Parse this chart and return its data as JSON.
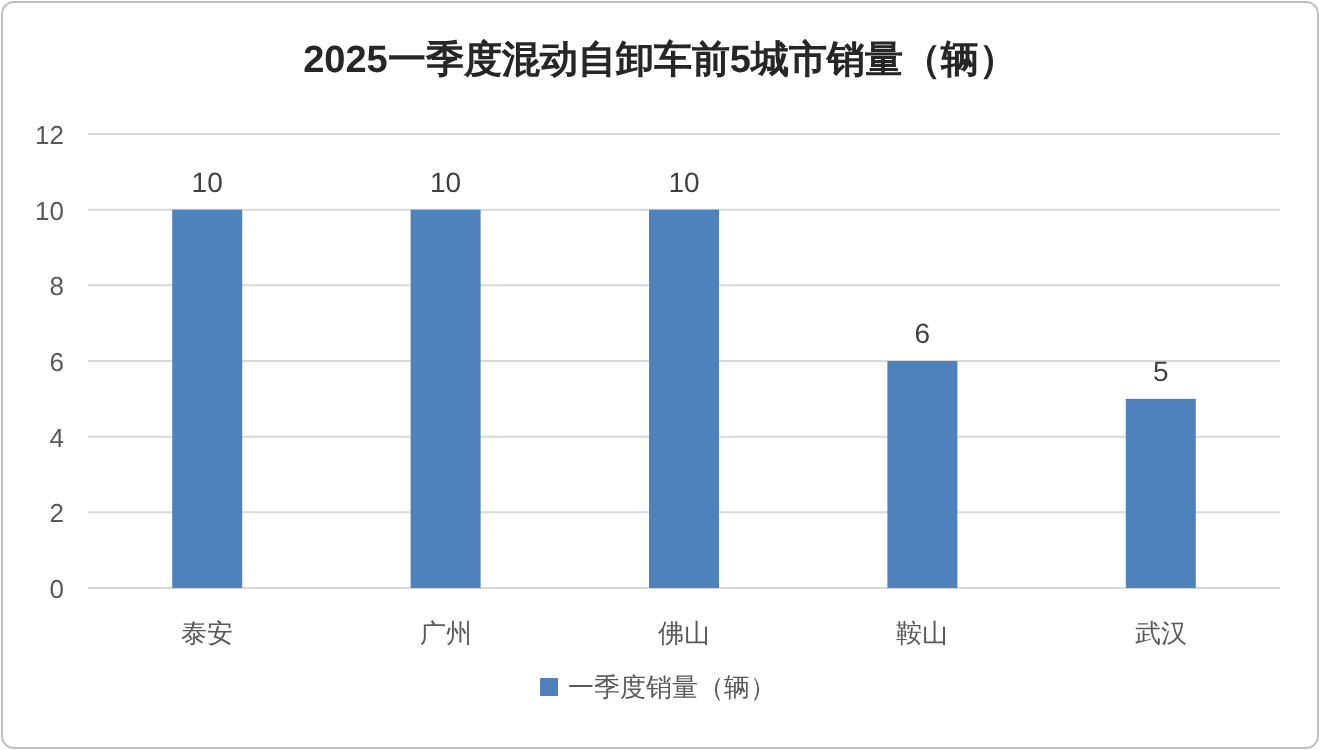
{
  "chart_data": {
    "type": "bar",
    "title": "2025一季度混动自卸车前5城市销量（辆）",
    "categories": [
      "泰安",
      "广州",
      "佛山",
      "鞍山",
      "武汉"
    ],
    "series": [
      {
        "name": "一季度销量（辆）",
        "color": "#4f81bd",
        "values": [
          10,
          10,
          10,
          6,
          5
        ]
      }
    ],
    "ylim": [
      0,
      12
    ],
    "yticks": [
      0,
      2,
      4,
      6,
      8,
      10,
      12
    ],
    "grid": "y",
    "data_labels": true,
    "legend": "bottom"
  }
}
